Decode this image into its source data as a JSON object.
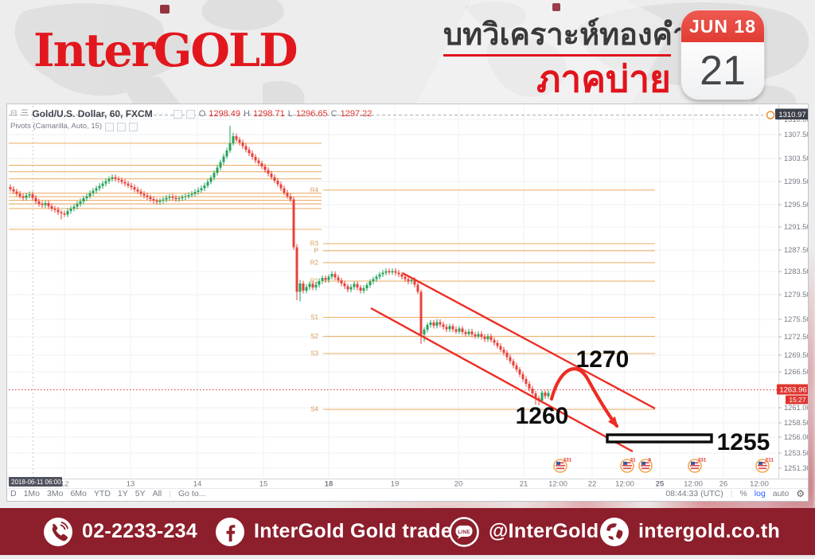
{
  "header": {
    "logo": "InterGOLD",
    "title_thai": "บทวิเคราะห์ทองคำ",
    "subtitle_thai": "ภาคบ่าย",
    "calendar": {
      "month_label": "JUN 18",
      "day": "21"
    },
    "accent_red": "#e2131b"
  },
  "chart_data": {
    "type": "candlestick",
    "title": "Gold/U.S. Dollar, 60, FXCM",
    "indicator": "Pivots (Camarilla, Auto, 15)",
    "ohlc_labels": [
      "O",
      "H",
      "L",
      "C"
    ],
    "ohlc_values": {
      "o": "1298.49",
      "h": "1298.71",
      "l": "1296.65",
      "c": "1297.22"
    },
    "last_price_label": "1263.96",
    "countdown": "15:27",
    "high_badge": "1310.97",
    "crosshair_date": "2018-06-11 06:00:00",
    "ylim": [
      1251.3,
      1311.0
    ],
    "grid": true,
    "colors": {
      "up": "#23a35d",
      "down": "#e8403a",
      "pivot": "#eeab62",
      "trend": "#ed2d24",
      "grid": "#eef2f6",
      "axis_text": "#787b86",
      "badge_dark": "#3c4049",
      "badge_red": "#e0352f"
    },
    "open_first": 1298.6,
    "x_start": 12,
    "x_step": 4,
    "closes": [
      1298.3,
      1297.9,
      1297.5,
      1297.1,
      1296.8,
      1297.2,
      1297.4,
      1296.8,
      1296.2,
      1295.8,
      1295.6,
      1295.9,
      1295.4,
      1295.0,
      1294.8,
      1294.4,
      1294.2,
      1294.0,
      1294.6,
      1295.0,
      1295.3,
      1295.8,
      1296.2,
      1296.7,
      1297.1,
      1297.6,
      1298.0,
      1298.4,
      1298.8,
      1299.2,
      1299.6,
      1300.0,
      1300.3,
      1300.0,
      1299.8,
      1299.5,
      1299.2,
      1298.9,
      1298.6,
      1298.2,
      1297.9,
      1297.5,
      1297.2,
      1296.9,
      1296.6,
      1296.3,
      1296.1,
      1296.3,
      1296.5,
      1296.8,
      1297.0,
      1296.8,
      1296.6,
      1296.7,
      1296.9,
      1297.1,
      1297.3,
      1297.5,
      1297.8,
      1298.1,
      1298.4,
      1298.9,
      1299.5,
      1300.2,
      1301.0,
      1301.9,
      1302.8,
      1303.8,
      1304.8,
      1306.0,
      1307.2,
      1306.6,
      1306.1,
      1305.5,
      1304.9,
      1304.3,
      1303.7,
      1303.1,
      1302.6,
      1302.1,
      1301.5,
      1300.9,
      1300.3,
      1299.7,
      1299.1,
      1298.4,
      1297.7,
      1297.1,
      1296.5,
      1288.5,
      1281.0,
      1282.4,
      1281.2,
      1281.8,
      1282.3,
      1281.7,
      1282.2,
      1282.8,
      1283.3,
      1283.0,
      1283.5,
      1284.0,
      1283.4,
      1282.9,
      1282.4,
      1281.9,
      1281.4,
      1281.8,
      1282.3,
      1281.7,
      1281.2,
      1281.6,
      1282.1,
      1282.7,
      1283.1,
      1283.5,
      1283.9,
      1284.2,
      1284.5,
      1284.3,
      1284.5,
      1284.2,
      1283.9,
      1283.5,
      1283.1,
      1282.7,
      1283.0,
      1282.2,
      1281.0,
      1273.8,
      1274.6,
      1275.4,
      1275.8,
      1275.3,
      1275.9,
      1275.5,
      1275.1,
      1274.7,
      1275.2,
      1274.7,
      1274.3,
      1274.8,
      1274.2,
      1273.9,
      1274.3,
      1273.8,
      1273.5,
      1273.9,
      1273.4,
      1273.0,
      1273.5,
      1272.9,
      1272.4,
      1271.9,
      1271.3,
      1270.7,
      1270.0,
      1269.3,
      1268.6,
      1267.9,
      1267.1,
      1266.3,
      1265.5,
      1264.7,
      1263.9,
      1263.1,
      1262.7,
      1264.0,
      1263.4,
      1263.96
    ],
    "special_candles": {
      "16": [
        1294.4,
        1294.8,
        1293.2,
        1294.2
      ],
      "69": [
        1304.8,
        1308.9,
        1304.4,
        1306.0
      ],
      "70": [
        1306.0,
        1307.8,
        1305.6,
        1307.2
      ],
      "89": [
        1296.5,
        1297.0,
        1288.0,
        1288.5
      ],
      "90": [
        1288.5,
        1289.0,
        1279.6,
        1281.0
      ],
      "91": [
        1281.0,
        1283.0,
        1279.4,
        1282.4
      ],
      "129": [
        1281.0,
        1281.4,
        1272.2,
        1273.8
      ],
      "130": [
        1273.8,
        1275.0,
        1272.6,
        1274.6
      ],
      "165": [
        1263.9,
        1264.3,
        1262.0,
        1263.1
      ],
      "166": [
        1263.1,
        1263.5,
        1261.9,
        1262.7
      ],
      "169": [
        1263.4,
        1264.5,
        1263.0,
        1263.96
      ]
    },
    "pivot_lines_left": [
      1306.0,
      1302.3,
      1301.2,
      1300.0,
      1297.6,
      1297.0,
      1296.4,
      1295.8,
      1295.0,
      1291.5
    ],
    "pivot_levels_right": [
      [
        "R4",
        1298.1
      ],
      [
        "R3",
        1289.1
      ],
      [
        "P",
        1287.9
      ],
      [
        "R2",
        1285.9
      ],
      [
        "R1",
        1282.8
      ],
      [
        "S1",
        1276.7
      ],
      [
        "S2",
        1273.5
      ],
      [
        "S3",
        1270.6
      ],
      [
        "S4",
        1261.2
      ]
    ],
    "price_ticks": [
      [
        149,
        "1310.00"
      ],
      [
        168,
        "1307.50"
      ],
      [
        198,
        "1303.50"
      ],
      [
        227,
        "1299.50"
      ],
      [
        256,
        "1295.50"
      ],
      [
        284,
        "1291.50"
      ],
      [
        313,
        "1287.50"
      ],
      [
        340,
        "1283.50"
      ],
      [
        369,
        "1279.50"
      ],
      [
        400,
        "1275.50"
      ],
      [
        422,
        "1272.50"
      ],
      [
        445,
        "1269.50"
      ],
      [
        466,
        "1266.50"
      ],
      [
        511,
        "1261.00"
      ],
      [
        530,
        "1258.50"
      ],
      [
        548,
        "1256.00"
      ],
      [
        568,
        "1253.50"
      ],
      [
        587,
        "1251.30"
      ]
    ],
    "time_ticks": [
      [
        80,
        "12",
        0
      ],
      [
        163,
        "13",
        0
      ],
      [
        247,
        "14",
        0
      ],
      [
        330,
        "15",
        0
      ],
      [
        412,
        "18",
        1
      ],
      [
        495,
        "19",
        0
      ],
      [
        575,
        "20",
        0
      ],
      [
        657,
        "21",
        0
      ],
      [
        700,
        "12:00",
        0
      ],
      [
        743,
        "22",
        0
      ],
      [
        784,
        "12:00",
        0
      ],
      [
        828,
        "25",
        1
      ],
      [
        870,
        "12:00",
        0
      ],
      [
        908,
        "26",
        0
      ],
      [
        953,
        "12:00",
        0
      ]
    ],
    "events": [
      {
        "x": 703,
        "label": "331"
      },
      {
        "x": 787,
        "label": "31"
      },
      {
        "x": 810,
        "label": "6"
      },
      {
        "x": 872,
        "label": "331"
      },
      {
        "x": 957,
        "label": "211"
      }
    ],
    "annotations": [
      {
        "text": "1270"
      },
      {
        "text": "1260"
      },
      {
        "text": "1255"
      }
    ],
    "toolbar": {
      "ranges": [
        "D",
        "1Mo",
        "3Mo",
        "6Mo",
        "YTD",
        "1Y",
        "5Y",
        "All"
      ],
      "goto": "Go to...",
      "clock": "08:44:33 (UTC)",
      "percent": "%",
      "log": "log",
      "auto": "auto"
    }
  },
  "footer": {
    "phone": "02-2233-234",
    "facebook": "InterGold Gold trade",
    "line": "@InterGold",
    "website": "intergold.co.th",
    "bg": "#8d1e2b"
  }
}
